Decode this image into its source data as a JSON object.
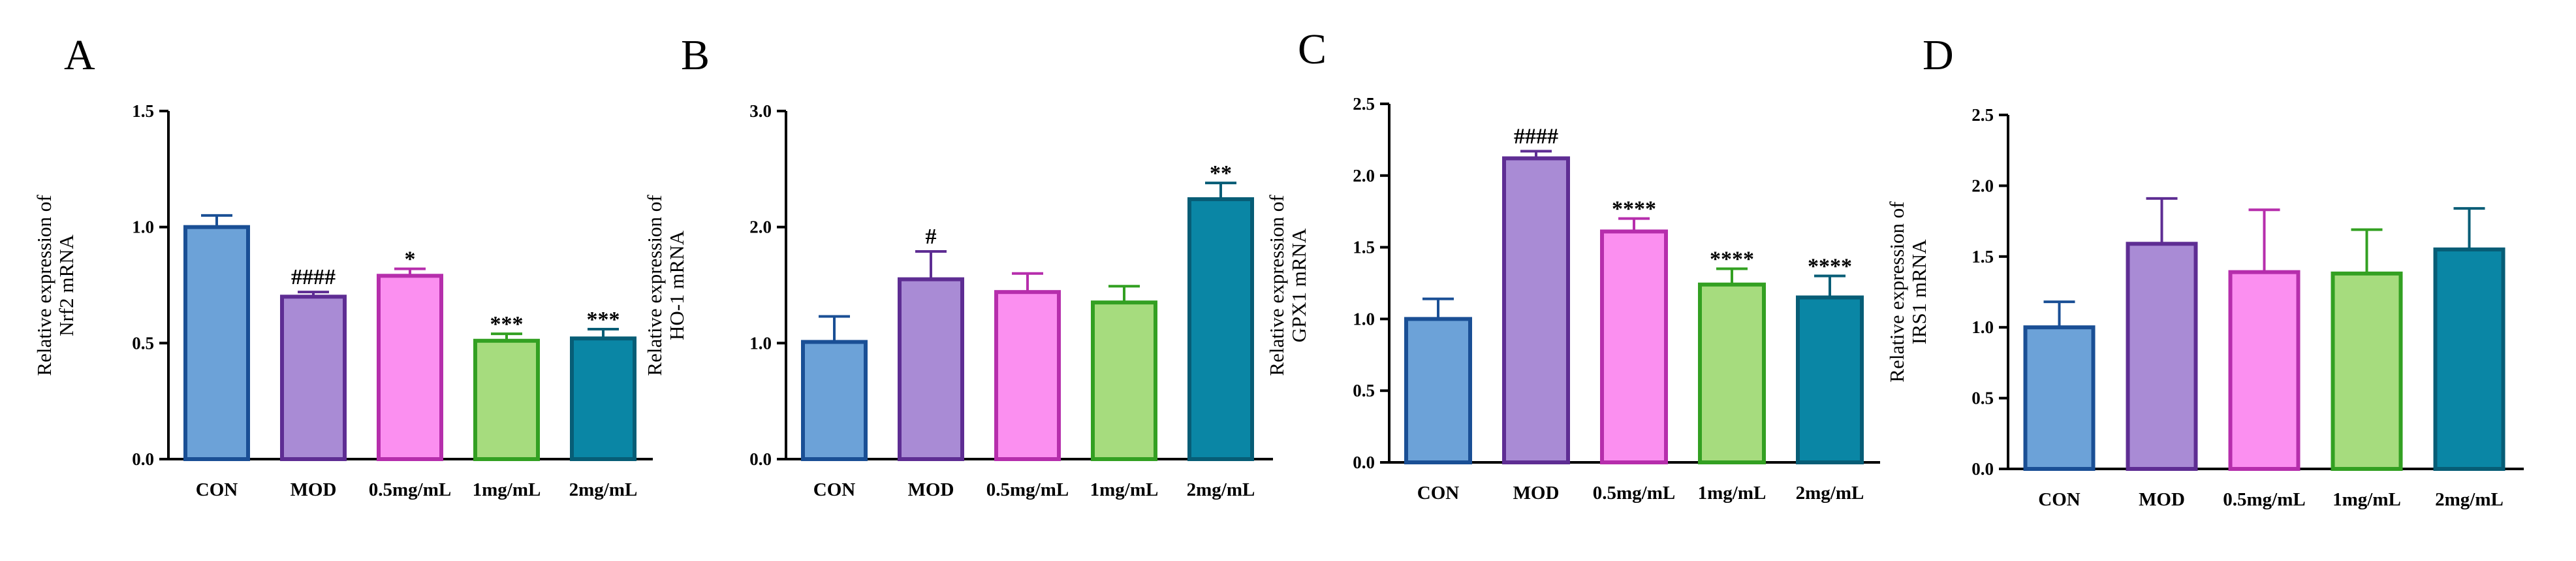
{
  "colors": {
    "fills": [
      "#6ca2d8",
      "#a98bd5",
      "#fb8ff0",
      "#a6dc7e",
      "#0a86a5"
    ],
    "strokes": [
      "#1a4f95",
      "#5e2d93",
      "#b62eac",
      "#33a022",
      "#075d76"
    ]
  },
  "chart_data": [
    {
      "type": "bar",
      "panel": "A",
      "categories": [
        "CON",
        "MOD",
        "0.5mg/mL",
        "1mg/mL",
        "2mg/mL"
      ],
      "values": [
        1.0,
        0.7,
        0.79,
        0.51,
        0.52
      ],
      "errors": [
        0.05,
        0.02,
        0.03,
        0.03,
        0.04
      ],
      "significance": [
        "",
        "####",
        "*",
        "***",
        "***"
      ],
      "ylabel_lines": [
        "Relative expression of",
        "Nrf2 mRNA"
      ],
      "ylim": [
        0,
        1.5
      ],
      "yticks": [
        "0.0",
        "0.5",
        "1.0",
        "1.5"
      ]
    },
    {
      "type": "bar",
      "panel": "B",
      "categories": [
        "CON",
        "MOD",
        "0.5mg/mL",
        "1mg/mL",
        "2mg/mL"
      ],
      "values": [
        1.01,
        1.55,
        1.44,
        1.35,
        2.24
      ],
      "errors": [
        0.22,
        0.24,
        0.16,
        0.14,
        0.14
      ],
      "significance": [
        "",
        "#",
        "",
        "",
        "**"
      ],
      "ylabel_lines": [
        "Relative expression of",
        "HO-1 mRNA"
      ],
      "ylim": [
        0,
        3.0
      ],
      "yticks": [
        "0.0",
        "1.0",
        "2.0",
        "3.0"
      ]
    },
    {
      "type": "bar",
      "panel": "C",
      "categories": [
        "CON",
        "MOD",
        "0.5mg/mL",
        "1mg/mL",
        "2mg/mL"
      ],
      "values": [
        1.0,
        2.12,
        1.61,
        1.24,
        1.15
      ],
      "errors": [
        0.14,
        0.05,
        0.09,
        0.11,
        0.15
      ],
      "significance": [
        "",
        "####",
        "****",
        "****",
        "****"
      ],
      "ylabel_lines": [
        "Relative expression of",
        "GPX1 mRNA"
      ],
      "ylim": [
        0,
        2.5
      ],
      "yticks": [
        "0.0",
        "0.5",
        "1.0",
        "1.5",
        "2.0",
        "2.5"
      ]
    },
    {
      "type": "bar",
      "panel": "D",
      "categories": [
        "CON",
        "MOD",
        "0.5mg/mL",
        "1mg/mL",
        "2mg/mL"
      ],
      "values": [
        1.0,
        1.59,
        1.39,
        1.38,
        1.55
      ],
      "errors": [
        0.18,
        0.32,
        0.44,
        0.31,
        0.29
      ],
      "significance": [
        "",
        "",
        "",
        "",
        ""
      ],
      "ylabel_lines": [
        "Relative expression of",
        "IRS1 mRNA"
      ],
      "ylim": [
        0,
        2.5
      ],
      "yticks": [
        "0.0",
        "0.5",
        "1.0",
        "1.5",
        "2.0",
        "2.5"
      ]
    }
  ]
}
